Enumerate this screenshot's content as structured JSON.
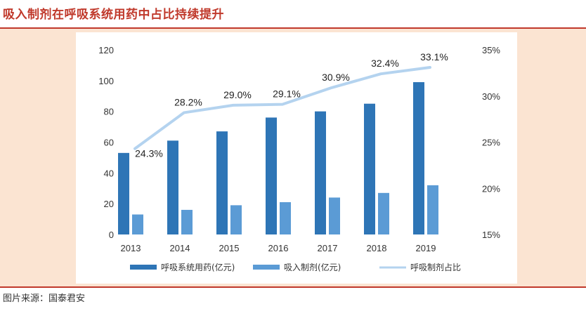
{
  "header": {
    "title": "吸入制剂在呼吸系统用药中占比持续提升"
  },
  "footer": {
    "source": "图片来源：国泰君安"
  },
  "colors": {
    "series1": "#2e75b6",
    "series2": "#5b9bd5",
    "series3": "#b4d3ef",
    "accent": "#c0392b",
    "panel": "#fbe4d2"
  },
  "chart_data": {
    "type": "bar",
    "categories": [
      "2013",
      "2014",
      "2015",
      "2016",
      "2017",
      "2018",
      "2019"
    ],
    "series": [
      {
        "name": "呼吸系统用药(亿元)",
        "type": "bar",
        "axis": "left",
        "values": [
          53,
          61,
          67,
          76,
          80,
          85,
          99
        ]
      },
      {
        "name": "吸入制剂(亿元)",
        "type": "bar",
        "axis": "left",
        "values": [
          13,
          16,
          19,
          21,
          24,
          27,
          32
        ]
      },
      {
        "name": "呼吸制剂占比",
        "type": "line",
        "axis": "right",
        "values": [
          24.3,
          28.2,
          29.0,
          29.1,
          30.9,
          32.4,
          33.1
        ],
        "labels": [
          "24.3%",
          "28.2%",
          "29.0%",
          "29.1%",
          "30.9%",
          "32.4%",
          "33.1%"
        ]
      }
    ],
    "ylim": [
      0,
      120
    ],
    "yticks": [
      "0",
      "20",
      "40",
      "60",
      "80",
      "100",
      "120"
    ],
    "y2lim": [
      15,
      35
    ],
    "y2ticks": [
      "15%",
      "20%",
      "25%",
      "30%",
      "35%"
    ],
    "grid": false,
    "legend": "bottom"
  }
}
